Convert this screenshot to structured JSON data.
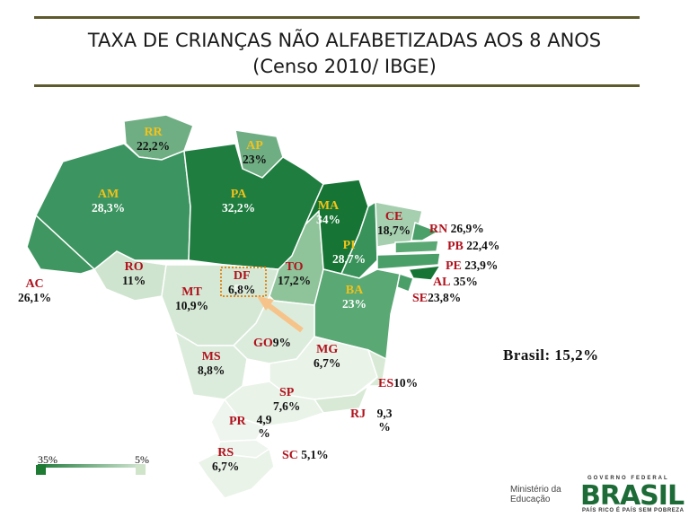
{
  "title_line1": "TAXA DE CRIANÇAS NÃO ALFABETIZADAS AOS 8 ANOS",
  "title_line2": "(Censo 2010/ IBGE)",
  "national_label": "Brasil: 15,2%",
  "legend": {
    "max_label": "35%",
    "min_label": "5%",
    "max_color": "#1e7b34",
    "min_color": "#cfe4c9"
  },
  "states": [
    {
      "code": "RR",
      "value": "22,2%"
    },
    {
      "code": "AP",
      "value": "23%"
    },
    {
      "code": "AM",
      "value": "28,3%"
    },
    {
      "code": "PA",
      "value": "32,2%"
    },
    {
      "code": "MA",
      "value": "34%"
    },
    {
      "code": "CE",
      "value": "18,7%"
    },
    {
      "code": "RN",
      "value": "26,9%"
    },
    {
      "code": "PB",
      "value": "22,4%"
    },
    {
      "code": "PI",
      "value": "28,7%"
    },
    {
      "code": "PE",
      "value": "23,9%"
    },
    {
      "code": "AL",
      "value": "35%"
    },
    {
      "code": "SE",
      "value": "23,8%"
    },
    {
      "code": "AC",
      "value": "26,1%"
    },
    {
      "code": "RO",
      "value": "11%"
    },
    {
      "code": "TO",
      "value": "17,2%"
    },
    {
      "code": "DF",
      "value": "6,8%"
    },
    {
      "code": "MT",
      "value": "10,9%"
    },
    {
      "code": "BA",
      "value": "23%"
    },
    {
      "code": "GO",
      "value": "9%"
    },
    {
      "code": "MG",
      "value": "6,7%"
    },
    {
      "code": "MS",
      "value": "8,8%"
    },
    {
      "code": "ES",
      "value": "10%"
    },
    {
      "code": "SP",
      "value": "7,6%"
    },
    {
      "code": "RJ",
      "value": "9,3 %"
    },
    {
      "code": "PR",
      "value": "4,9 %"
    },
    {
      "code": "SC",
      "value": "5,1%"
    },
    {
      "code": "RS",
      "value": "6,7%"
    }
  ],
  "logos": {
    "ministerio": "Ministério da Educação",
    "gov_federal": "GOVERNO FEDERAL",
    "brasil": "BRASIL",
    "tagline": "PAÍS RICO É PAÍS SEM POBREZA"
  }
}
